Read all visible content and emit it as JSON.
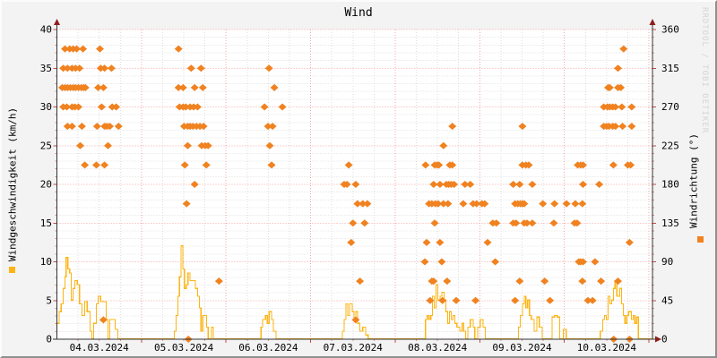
{
  "title": "Wind",
  "watermark": "RRDTOOL / TOBI OETIKER",
  "left_axis": {
    "label": "Windgeschwindigkeit (km/h)",
    "min": 0,
    "max": 40,
    "tick_step": 5,
    "minor_step": 1,
    "ticks": [
      0,
      5,
      10,
      15,
      20,
      25,
      30,
      35,
      40
    ]
  },
  "right_axis": {
    "label": "Windrichtung (°)",
    "min": 0,
    "max": 360,
    "tick_step": 45,
    "minor_step": 9,
    "ticks": [
      0,
      45,
      90,
      135,
      180,
      225,
      270,
      315,
      360
    ]
  },
  "x_axis": {
    "dates": [
      "04.03.2024",
      "05.03.2024",
      "06.03.2024",
      "07.03.2024",
      "08.03.2024",
      "09.03.2024",
      "10.03.2024"
    ],
    "days": 7,
    "hours_total": 169,
    "minor_step_hours": 6,
    "major_step_hours": 24
  },
  "colors": {
    "speed_line": "#FDB515",
    "direction_marker": "#F08220",
    "grid_major": "#f5a7a7",
    "grid_minor": "#dedede",
    "axis": "#333333",
    "arrow": "#8f1d1d",
    "tick_major": "#c24b4b",
    "tick_minor": "#d98f8f",
    "plot_bg": "#ffffff",
    "canvas_bg": "#f3f3f3",
    "watermark": "#d4d4d4"
  },
  "chart_data": [
    {
      "type": "scatter",
      "name": "Windrichtung",
      "unit": "°",
      "axis": "right",
      "ylim": [
        0,
        360
      ],
      "marker": "diamond",
      "note": "times are hours since 04.03.2024 00:00",
      "points_by_direction": {
        "337.5": [
          2.3,
          3.6,
          4.6,
          5.6,
          7.4,
          12.2,
          34.5,
          160.8
        ],
        "315": [
          1.8,
          3.0,
          4.3,
          5.3,
          6.4,
          12.4,
          13.5,
          15.5,
          38.1,
          40.9,
          60.2,
          159.2
        ],
        "292.5": [
          1.5,
          2.3,
          3.0,
          3.8,
          4.6,
          5.3,
          6.1,
          6.9,
          7.6,
          8.1,
          11.7,
          13.2,
          34.5,
          35.8,
          39.1,
          41.4,
          61.7,
          156.4,
          156.9,
          159.2,
          160.0
        ],
        "270": [
          1.8,
          2.8,
          4.3,
          5.1,
          6.1,
          12.7,
          15.7,
          16.8,
          34.8,
          35.8,
          36.6,
          37.8,
          38.8,
          39.9,
          58.9,
          64.0,
          155.2,
          156.2,
          156.9,
          157.7,
          158.5,
          160.3,
          163.1
        ],
        "247.5": [
          3.0,
          4.3,
          7.1,
          11.4,
          13.5,
          14.2,
          15.0,
          17.5,
          36.1,
          37.1,
          37.8,
          38.6,
          39.6,
          40.6,
          41.6,
          59.9,
          61.2,
          112.2,
          132.1,
          155.2,
          156.0,
          156.7,
          157.7,
          158.5,
          160.5,
          163.1
        ],
        "225": [
          6.6,
          14.5,
          37.1,
          41.1,
          42.1,
          42.9,
          60.4,
          109.7
        ],
        "202.5": [
          7.9,
          11.2,
          13.5,
          36.3,
          42.4,
          60.9,
          82.8,
          104.6,
          107.2,
          107.9,
          108.4,
          111.5,
          112.2,
          132.1,
          133.1,
          133.9,
          147.8,
          148.6,
          149.3,
          157.9,
          162.0,
          162.8
        ],
        "180": [
          39.1,
          81.5,
          82.3,
          84.8,
          106.9,
          108.7,
          110.5,
          111.2,
          111.9,
          112.7,
          115.8,
          117.3,
          129.5,
          131.3,
          134.9,
          149.3,
          153.9
        ],
        "157.5": [
          36.8,
          85.3,
          86.8,
          88.1,
          105.6,
          106.4,
          107.4,
          108.2,
          109.7,
          111.0,
          115.3,
          118.1,
          119.1,
          120.6,
          121.4,
          130.0,
          130.8,
          131.5,
          132.1,
          132.6,
          137.9,
          141.2,
          144.6,
          147.1,
          149.1
        ],
        "135": [
          84.0,
          87.3,
          107.2,
          123.7,
          124.7,
          129.5,
          130.3,
          132.6,
          133.4,
          134.9,
          141.0,
          146.9,
          147.6
        ],
        "112.5": [
          83.5,
          104.9,
          108.7,
          122.2,
          162.5
        ],
        "90": [
          104.4,
          109.2,
          124.4,
          148.1,
          148.6,
          149.3,
          152.7
        ],
        "67.5": [
          46.0,
          86.0,
          106.4,
          106.9,
          110.7,
          131.3,
          138.4,
          149.1,
          154.4,
          159.2
        ],
        "45": [
          105.9,
          109.4,
          113.3,
          118.8,
          130.0,
          139.9,
          150.7,
          152.0
        ],
        "22.5": [
          13.2,
          84.8
        ],
        "0": [
          37.3,
          158.0,
          162.5
        ]
      }
    },
    {
      "type": "line",
      "name": "Windgeschwindigkeit",
      "unit": "km/h",
      "axis": "left",
      "ylim": [
        0,
        40
      ],
      "line_style": "step",
      "note": "steps as [hours since 04.03.2024 00:00, km/h]",
      "steps": [
        [
          0,
          2
        ],
        [
          0.6,
          3.5
        ],
        [
          1.2,
          4.5
        ],
        [
          1.8,
          6.5
        ],
        [
          2.3,
          8
        ],
        [
          2.6,
          10.5
        ],
        [
          3.1,
          9
        ],
        [
          3.6,
          8.5
        ],
        [
          4.1,
          5
        ],
        [
          4.6,
          6.5
        ],
        [
          5.1,
          7.5
        ],
        [
          5.8,
          7
        ],
        [
          6.4,
          4.5
        ],
        [
          7.1,
          3
        ],
        [
          7.9,
          4.8
        ],
        [
          8.6,
          3.5
        ],
        [
          9.4,
          1
        ],
        [
          9.9,
          0
        ],
        [
          10.4,
          2
        ],
        [
          11.2,
          4.5
        ],
        [
          11.7,
          5.5
        ],
        [
          12.4,
          4.8
        ],
        [
          13.2,
          4.8
        ],
        [
          14.0,
          2.5
        ],
        [
          14.5,
          0
        ],
        [
          15.0,
          2.5
        ],
        [
          15.8,
          2.5
        ],
        [
          16.5,
          1.2
        ],
        [
          17.3,
          0
        ],
        [
          33.3,
          1
        ],
        [
          33.8,
          3
        ],
        [
          34.3,
          5.5
        ],
        [
          34.8,
          8
        ],
        [
          35.2,
          12
        ],
        [
          35.7,
          9
        ],
        [
          36.2,
          6.5
        ],
        [
          36.7,
          7
        ],
        [
          37.2,
          8.5
        ],
        [
          37.8,
          7.5
        ],
        [
          38.8,
          7.5
        ],
        [
          39.3,
          6.5
        ],
        [
          39.9,
          5.5
        ],
        [
          40.4,
          4
        ],
        [
          40.9,
          1
        ],
        [
          41.4,
          3
        ],
        [
          42.0,
          3
        ],
        [
          42.5,
          1.5
        ],
        [
          42.9,
          0
        ],
        [
          43.9,
          1.5
        ],
        [
          44.4,
          0
        ],
        [
          57.9,
          1.5
        ],
        [
          58.4,
          2.5
        ],
        [
          59.2,
          3
        ],
        [
          59.7,
          2
        ],
        [
          60.2,
          3.5
        ],
        [
          60.9,
          2.5
        ],
        [
          61.4,
          1
        ],
        [
          62.2,
          0
        ],
        [
          81.0,
          1
        ],
        [
          81.5,
          2.5
        ],
        [
          82.0,
          4.5
        ],
        [
          82.5,
          3
        ],
        [
          83.0,
          4.5
        ],
        [
          83.8,
          3.5
        ],
        [
          84.3,
          2.5
        ],
        [
          84.8,
          3.5
        ],
        [
          85.3,
          2
        ],
        [
          86.0,
          1
        ],
        [
          86.8,
          1.5
        ],
        [
          87.6,
          0.5
        ],
        [
          88.3,
          0
        ],
        [
          104.6,
          2.5
        ],
        [
          105.1,
          3
        ],
        [
          105.6,
          2.5
        ],
        [
          106.1,
          3
        ],
        [
          106.6,
          5.5
        ],
        [
          107.1,
          4
        ],
        [
          107.6,
          7
        ],
        [
          108.1,
          5
        ],
        [
          108.7,
          5.5
        ],
        [
          109.2,
          6
        ],
        [
          109.9,
          5
        ],
        [
          110.4,
          3.5
        ],
        [
          110.9,
          2
        ],
        [
          111.4,
          3.5
        ],
        [
          111.9,
          2.5
        ],
        [
          112.4,
          3
        ],
        [
          112.9,
          2
        ],
        [
          113.5,
          1.5
        ],
        [
          114.3,
          1
        ],
        [
          115.0,
          2
        ],
        [
          115.5,
          1
        ],
        [
          116.0,
          0
        ],
        [
          116.6,
          1.5
        ],
        [
          117.3,
          2.5
        ],
        [
          118.1,
          1.5
        ],
        [
          118.6,
          0
        ],
        [
          119.4,
          1.5
        ],
        [
          120.1,
          2.5
        ],
        [
          120.9,
          1.5
        ],
        [
          121.6,
          0
        ],
        [
          131.0,
          1.5
        ],
        [
          131.5,
          3
        ],
        [
          132.1,
          4.5
        ],
        [
          132.6,
          5.5
        ],
        [
          133.1,
          4
        ],
        [
          133.6,
          5
        ],
        [
          134.1,
          3
        ],
        [
          134.6,
          2.5
        ],
        [
          135.4,
          1
        ],
        [
          136.2,
          2.8
        ],
        [
          136.9,
          1.5
        ],
        [
          137.7,
          0
        ],
        [
          140.5,
          2.8
        ],
        [
          141.2,
          3
        ],
        [
          142.0,
          2.8
        ],
        [
          142.7,
          0
        ],
        [
          143.7,
          1.2
        ],
        [
          144.5,
          0
        ],
        [
          154.2,
          1
        ],
        [
          154.9,
          2.5
        ],
        [
          155.4,
          3
        ],
        [
          155.9,
          2.5
        ],
        [
          156.4,
          5.5
        ],
        [
          156.9,
          4.5
        ],
        [
          157.4,
          5
        ],
        [
          157.9,
          6.5
        ],
        [
          158.4,
          7.5
        ],
        [
          158.9,
          5.5
        ],
        [
          159.7,
          6.5
        ],
        [
          160.2,
          4.5
        ],
        [
          160.7,
          3
        ],
        [
          161.2,
          2
        ],
        [
          161.7,
          3
        ],
        [
          162.2,
          3.5
        ],
        [
          163.0,
          2.5
        ],
        [
          163.5,
          3
        ],
        [
          164.0,
          2
        ],
        [
          164.5,
          2.8
        ],
        [
          165.0,
          0
        ],
        [
          169,
          0
        ]
      ]
    }
  ]
}
